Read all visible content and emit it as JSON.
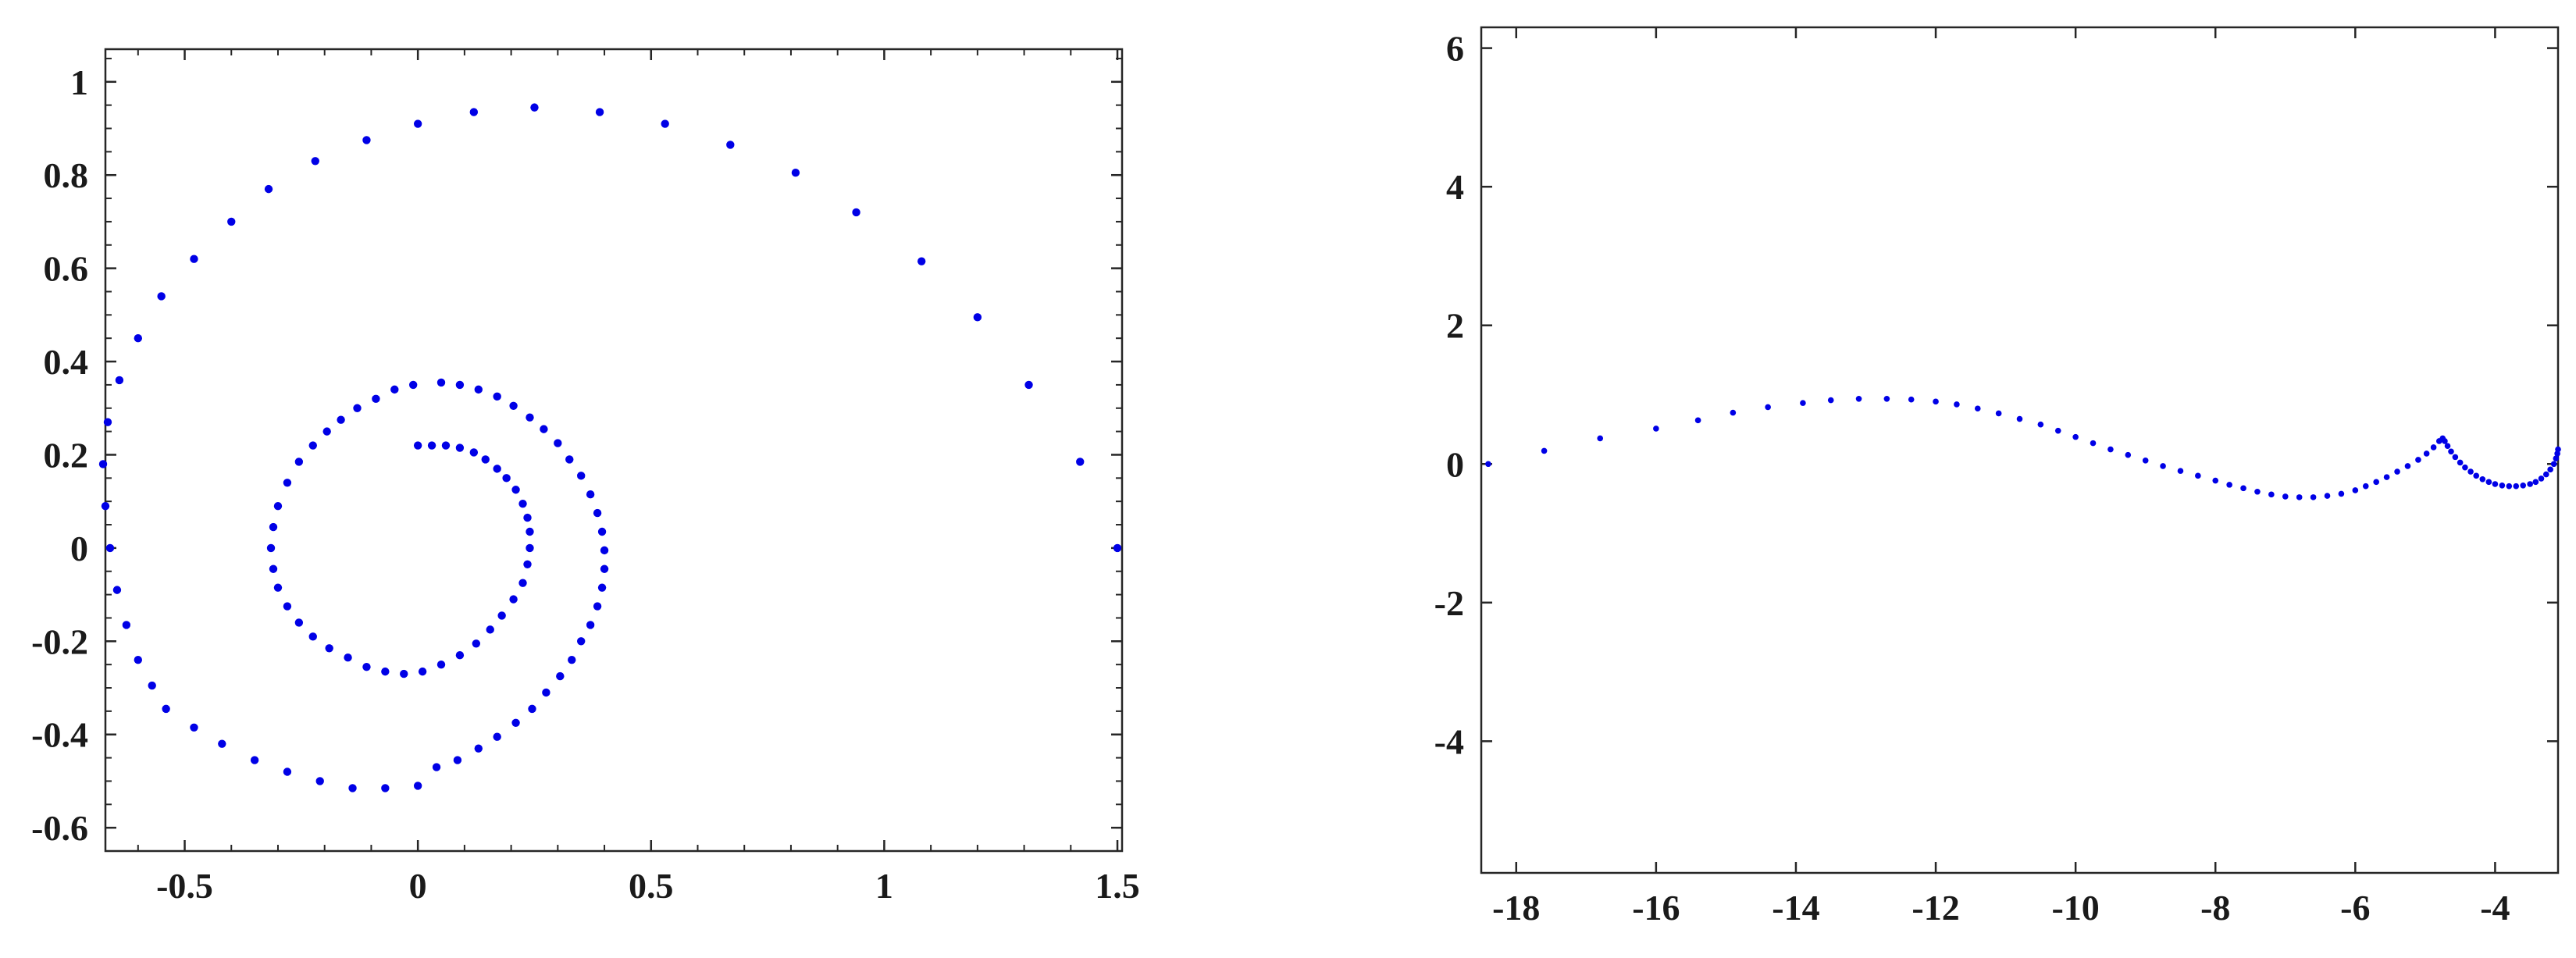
{
  "chart_data": [
    {
      "type": "scatter",
      "xlim": [
        -0.67,
        1.51
      ],
      "ylim": [
        -0.65,
        1.07
      ],
      "xticks": [
        -0.5,
        0,
        0.5,
        1,
        1.5
      ],
      "xtick_labels": [
        "-0.5",
        "0",
        "0.5",
        "1",
        "1.5"
      ],
      "yticks": [
        -0.6,
        -0.4,
        -0.2,
        0,
        0.2,
        0.4,
        0.6,
        0.8,
        1
      ],
      "ytick_labels": [
        "-0.6",
        "-0.4",
        "-0.2",
        "0",
        "0.2",
        "0.4",
        "0.6",
        "0.8",
        "1"
      ],
      "x_minor_step": 0.1,
      "y_minor_step": 0.05,
      "grid": false,
      "marker_color": "#0000e6",
      "series": [
        {
          "points": [
            [
              0.0,
              0.22
            ],
            [
              0.03,
              0.22
            ],
            [
              0.06,
              0.22
            ],
            [
              0.09,
              0.215
            ],
            [
              0.12,
              0.205
            ],
            [
              0.145,
              0.19
            ],
            [
              0.17,
              0.17
            ],
            [
              0.19,
              0.15
            ],
            [
              0.21,
              0.125
            ],
            [
              0.225,
              0.095
            ],
            [
              0.235,
              0.065
            ],
            [
              0.24,
              0.035
            ],
            [
              0.24,
              0.0
            ],
            [
              0.235,
              -0.035
            ],
            [
              0.225,
              -0.075
            ],
            [
              0.205,
              -0.11
            ],
            [
              0.18,
              -0.145
            ],
            [
              0.155,
              -0.175
            ],
            [
              0.125,
              -0.205
            ],
            [
              0.09,
              -0.23
            ],
            [
              0.05,
              -0.25
            ],
            [
              0.01,
              -0.265
            ],
            [
              -0.03,
              -0.27
            ],
            [
              -0.07,
              -0.265
            ],
            [
              -0.11,
              -0.255
            ],
            [
              -0.15,
              -0.235
            ],
            [
              -0.19,
              -0.215
            ],
            [
              -0.225,
              -0.19
            ],
            [
              -0.255,
              -0.16
            ],
            [
              -0.28,
              -0.125
            ],
            [
              -0.3,
              -0.085
            ],
            [
              -0.31,
              -0.045
            ],
            [
              -0.315,
              0.0
            ],
            [
              -0.31,
              0.045
            ],
            [
              -0.3,
              0.09
            ],
            [
              -0.28,
              0.14
            ],
            [
              -0.255,
              0.185
            ],
            [
              -0.225,
              0.22
            ],
            [
              -0.195,
              0.25
            ],
            [
              -0.165,
              0.275
            ],
            [
              -0.13,
              0.3
            ],
            [
              -0.09,
              0.32
            ],
            [
              -0.05,
              0.34
            ],
            [
              -0.01,
              0.35
            ],
            [
              0.05,
              0.355
            ],
            [
              0.09,
              0.35
            ],
            [
              0.13,
              0.34
            ],
            [
              0.17,
              0.325
            ],
            [
              0.205,
              0.305
            ],
            [
              0.24,
              0.28
            ],
            [
              0.27,
              0.255
            ],
            [
              0.3,
              0.225
            ],
            [
              0.325,
              0.19
            ],
            [
              0.35,
              0.155
            ],
            [
              0.37,
              0.115
            ],
            [
              0.385,
              0.075
            ],
            [
              0.395,
              0.035
            ],
            [
              0.4,
              -0.005
            ],
            [
              0.4,
              -0.045
            ],
            [
              0.395,
              -0.085
            ],
            [
              0.385,
              -0.125
            ],
            [
              0.37,
              -0.165
            ],
            [
              0.35,
              -0.2
            ],
            [
              0.33,
              -0.24
            ],
            [
              0.305,
              -0.275
            ],
            [
              0.275,
              -0.31
            ],
            [
              0.245,
              -0.345
            ],
            [
              0.21,
              -0.375
            ],
            [
              0.17,
              -0.405
            ],
            [
              0.13,
              -0.43
            ],
            [
              0.085,
              -0.455
            ],
            [
              0.04,
              -0.47
            ],
            [
              -0.0,
              -0.51
            ],
            [
              -0.07,
              -0.515
            ],
            [
              -0.14,
              -0.515
            ],
            [
              -0.21,
              -0.5
            ],
            [
              -0.28,
              -0.48
            ],
            [
              -0.35,
              -0.455
            ],
            [
              -0.42,
              -0.42
            ],
            [
              -0.48,
              -0.385
            ],
            [
              -0.54,
              -0.345
            ],
            [
              -0.57,
              -0.295
            ],
            [
              -0.6,
              -0.24
            ],
            [
              -0.625,
              -0.165
            ],
            [
              -0.645,
              -0.09
            ],
            [
              -0.66,
              0.0
            ],
            [
              -0.67,
              0.09
            ],
            [
              -0.675,
              0.18
            ],
            [
              -0.665,
              0.27
            ],
            [
              -0.64,
              0.36
            ],
            [
              -0.6,
              0.45
            ],
            [
              -0.55,
              0.54
            ],
            [
              -0.48,
              0.62
            ],
            [
              -0.4,
              0.7
            ],
            [
              -0.32,
              0.77
            ],
            [
              -0.22,
              0.83
            ],
            [
              -0.11,
              0.875
            ],
            [
              0.0,
              0.91
            ],
            [
              0.12,
              0.935
            ],
            [
              0.25,
              0.945
            ],
            [
              0.39,
              0.935
            ],
            [
              0.53,
              0.91
            ],
            [
              0.67,
              0.865
            ],
            [
              0.81,
              0.805
            ],
            [
              0.94,
              0.72
            ],
            [
              1.08,
              0.615
            ],
            [
              1.2,
              0.495
            ],
            [
              1.31,
              0.35
            ],
            [
              1.42,
              0.185
            ],
            [
              1.5,
              0.0
            ]
          ]
        }
      ]
    },
    {
      "type": "scatter",
      "xlim": [
        -18.5,
        -3.1
      ],
      "ylim": [
        -5.9,
        6.3
      ],
      "xticks": [
        -18,
        -16,
        -14,
        -12,
        -10,
        -8,
        -6,
        -4
      ],
      "xtick_labels": [
        "-18",
        "-16",
        "-14",
        "-12",
        "-10",
        "-8",
        "-6",
        "-4"
      ],
      "yticks": [
        -4,
        -2,
        0,
        2,
        4,
        6
      ],
      "ytick_labels": [
        "-4",
        "-2",
        "0",
        "2",
        "4",
        "6"
      ],
      "grid": false,
      "marker_color": "#0000e6",
      "series": [
        {
          "points": [
            [
              -18.4,
              0.0
            ],
            [
              -17.6,
              0.19
            ],
            [
              -16.8,
              0.37
            ],
            [
              -16.0,
              0.51
            ],
            [
              -15.4,
              0.63
            ],
            [
              -14.9,
              0.74
            ],
            [
              -14.4,
              0.82
            ],
            [
              -13.9,
              0.88
            ],
            [
              -13.5,
              0.92
            ],
            [
              -13.1,
              0.94
            ],
            [
              -12.7,
              0.94
            ],
            [
              -12.35,
              0.93
            ],
            [
              -12.0,
              0.9
            ],
            [
              -11.7,
              0.86
            ],
            [
              -11.4,
              0.8
            ],
            [
              -11.1,
              0.73
            ],
            [
              -10.8,
              0.65
            ],
            [
              -10.5,
              0.57
            ],
            [
              -10.25,
              0.48
            ],
            [
              -10.0,
              0.39
            ],
            [
              -9.75,
              0.3
            ],
            [
              -9.5,
              0.21
            ],
            [
              -9.25,
              0.13
            ],
            [
              -9.0,
              0.05
            ],
            [
              -8.75,
              -0.03
            ],
            [
              -8.5,
              -0.1
            ],
            [
              -8.25,
              -0.17
            ],
            [
              -8.0,
              -0.24
            ],
            [
              -7.8,
              -0.3
            ],
            [
              -7.6,
              -0.35
            ],
            [
              -7.4,
              -0.4
            ],
            [
              -7.2,
              -0.44
            ],
            [
              -7.0,
              -0.47
            ],
            [
              -6.8,
              -0.48
            ],
            [
              -6.6,
              -0.48
            ],
            [
              -6.4,
              -0.46
            ],
            [
              -6.2,
              -0.43
            ],
            [
              -6.0,
              -0.38
            ],
            [
              -5.85,
              -0.32
            ],
            [
              -5.7,
              -0.26
            ],
            [
              -5.55,
              -0.19
            ],
            [
              -5.4,
              -0.11
            ],
            [
              -5.25,
              -0.03
            ],
            [
              -5.1,
              0.06
            ],
            [
              -4.98,
              0.15
            ],
            [
              -4.88,
              0.24
            ],
            [
              -4.8,
              0.33
            ],
            [
              -4.75,
              0.37
            ],
            [
              -4.72,
              0.33
            ],
            [
              -4.68,
              0.26
            ],
            [
              -4.63,
              0.18
            ],
            [
              -4.57,
              0.1
            ],
            [
              -4.5,
              0.02
            ],
            [
              -4.43,
              -0.05
            ],
            [
              -4.35,
              -0.11
            ],
            [
              -4.27,
              -0.17
            ],
            [
              -4.18,
              -0.22
            ],
            [
              -4.09,
              -0.26
            ],
            [
              -4.0,
              -0.29
            ],
            [
              -3.9,
              -0.31
            ],
            [
              -3.8,
              -0.32
            ],
            [
              -3.7,
              -0.32
            ],
            [
              -3.6,
              -0.31
            ],
            [
              -3.5,
              -0.29
            ],
            [
              -3.42,
              -0.26
            ],
            [
              -3.34,
              -0.21
            ],
            [
              -3.27,
              -0.15
            ],
            [
              -3.21,
              -0.08
            ],
            [
              -3.16,
              0.0
            ],
            [
              -3.13,
              0.08
            ],
            [
              -3.11,
              0.15
            ],
            [
              -3.1,
              0.21
            ]
          ]
        }
      ]
    }
  ]
}
